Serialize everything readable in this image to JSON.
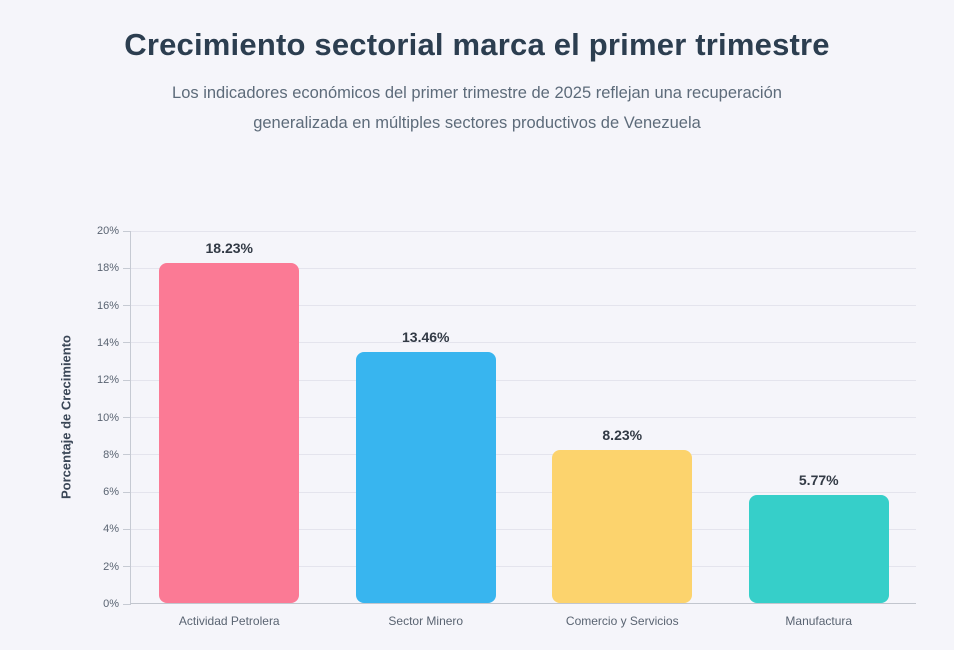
{
  "page": {
    "title": "Crecimiento sectorial marca el primer trimestre",
    "subtitle_line1": "Los indicadores económicos del primer trimestre de 2025 reflejan una recuperación",
    "subtitle_line2": "generalizada en múltiples sectores productivos de Venezuela"
  },
  "chart_data": {
    "type": "bar",
    "title": "Crecimiento sectorial marca el primer trimestre",
    "categories": [
      "Actividad Petrolera",
      "Sector Minero",
      "Comercio y Servicios",
      "Manufactura"
    ],
    "values": [
      18.23,
      13.46,
      8.23,
      5.77
    ],
    "data_labels": [
      "18.23%",
      "13.46%",
      "8.23%",
      "5.77%"
    ],
    "bar_colors": [
      "#fb7a95",
      "#38b5ef",
      "#fcd36d",
      "#36cfc9"
    ],
    "xlabel": "",
    "ylabel": "Porcentaje de Crecimiento",
    "ylim": [
      0,
      20
    ],
    "ytick_step": 2,
    "ytick_labels": [
      "0%",
      "2%",
      "4%",
      "6%",
      "8%",
      "10%",
      "12%",
      "14%",
      "16%",
      "18%",
      "20%"
    ],
    "grid": true,
    "legend_position": "none"
  },
  "colors": {
    "background": "#f5f5fa",
    "title_text": "#2c3e50",
    "subtitle_text": "#5d6b7a",
    "axis_text": "#5a6472",
    "value_label_text": "#323a45",
    "gridline": "#e4e4ed",
    "axis_line": "#c6cad3"
  }
}
